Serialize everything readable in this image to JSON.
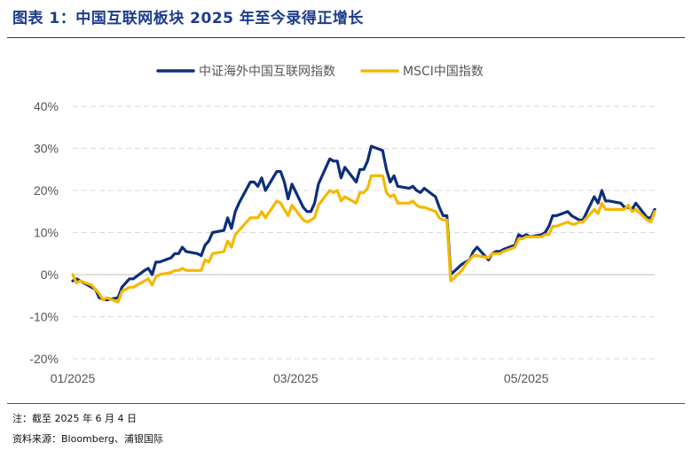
{
  "header": {
    "title": "图表 1：中国互联网板块 2025 年至今录得正增长"
  },
  "footer": {
    "note": "注：截至 2025 年 6 月 4 日",
    "source": "资料来源：Bloomberg、浦银国际"
  },
  "chart_data": {
    "type": "line",
    "y_tick_labels": [
      "40%",
      "30%",
      "20%",
      "10%",
      "0%",
      "-10%",
      "-20%"
    ],
    "y_ticks": [
      40,
      30,
      20,
      10,
      0,
      -10,
      -20
    ],
    "ylim": [
      -20,
      40
    ],
    "x_tick_labels": [
      "01/2025",
      "03/2025",
      "05/2025"
    ],
    "x_ticks": [
      "2025-01-01",
      "2025-03-01",
      "2025-05-01"
    ],
    "xlim": [
      "2025-01-01",
      "2025-06-04"
    ],
    "grid": true,
    "legend_position": "top",
    "series": [
      {
        "name": "中证海外中国互联网指数",
        "color": "#0d2e7a",
        "points": [
          [
            "2025-01-01",
            -1.5
          ],
          [
            "2025-01-02",
            -1.0
          ],
          [
            "2025-01-03",
            -1.5
          ],
          [
            "2025-01-06",
            -3.0
          ],
          [
            "2025-01-07",
            -3.5
          ],
          [
            "2025-01-08",
            -5.5
          ],
          [
            "2025-01-09",
            -5.8
          ],
          [
            "2025-01-10",
            -6.0
          ],
          [
            "2025-01-13",
            -5.5
          ],
          [
            "2025-01-14",
            -3.0
          ],
          [
            "2025-01-15",
            -2.0
          ],
          [
            "2025-01-16",
            -1.0
          ],
          [
            "2025-01-17",
            -1.0
          ],
          [
            "2025-01-20",
            1.0
          ],
          [
            "2025-01-21",
            1.5
          ],
          [
            "2025-01-22",
            0.0
          ],
          [
            "2025-01-23",
            3.0
          ],
          [
            "2025-01-24",
            3.0
          ],
          [
            "2025-01-27",
            4.0
          ],
          [
            "2025-01-28",
            5.0
          ],
          [
            "2025-01-29",
            5.0
          ],
          [
            "2025-01-30",
            6.5
          ],
          [
            "2025-01-31",
            5.5
          ],
          [
            "2025-02-03",
            5.0
          ],
          [
            "2025-02-04",
            4.5
          ],
          [
            "2025-02-05",
            7.0
          ],
          [
            "2025-02-06",
            8.0
          ],
          [
            "2025-02-07",
            10.0
          ],
          [
            "2025-02-10",
            10.5
          ],
          [
            "2025-02-11",
            13.5
          ],
          [
            "2025-02-12",
            11.0
          ],
          [
            "2025-02-13",
            15.0
          ],
          [
            "2025-02-14",
            17.0
          ],
          [
            "2025-02-17",
            22.0
          ],
          [
            "2025-02-18",
            22.0
          ],
          [
            "2025-02-19",
            21.0
          ],
          [
            "2025-02-20",
            23.0
          ],
          [
            "2025-02-21",
            20.0
          ],
          [
            "2025-02-24",
            24.5
          ],
          [
            "2025-02-25",
            24.5
          ],
          [
            "2025-02-26",
            22.0
          ],
          [
            "2025-02-27",
            18.0
          ],
          [
            "2025-02-28",
            21.5
          ],
          [
            "2025-03-03",
            16.0
          ],
          [
            "2025-03-04",
            15.0
          ],
          [
            "2025-03-05",
            15.0
          ],
          [
            "2025-03-06",
            17.0
          ],
          [
            "2025-03-07",
            21.5
          ],
          [
            "2025-03-10",
            27.5
          ],
          [
            "2025-03-11",
            27.0
          ],
          [
            "2025-03-12",
            27.0
          ],
          [
            "2025-03-13",
            23.0
          ],
          [
            "2025-03-14",
            25.5
          ],
          [
            "2025-03-17",
            22.0
          ],
          [
            "2025-03-18",
            25.0
          ],
          [
            "2025-03-19",
            25.0
          ],
          [
            "2025-03-20",
            27.0
          ],
          [
            "2025-03-21",
            30.5
          ],
          [
            "2025-03-24",
            29.5
          ],
          [
            "2025-03-25",
            25.0
          ],
          [
            "2025-03-26",
            22.0
          ],
          [
            "2025-03-27",
            23.5
          ],
          [
            "2025-03-28",
            21.0
          ],
          [
            "2025-03-31",
            20.5
          ],
          [
            "2025-04-01",
            21.0
          ],
          [
            "2025-04-02",
            20.0
          ],
          [
            "2025-04-03",
            19.5
          ],
          [
            "2025-04-04",
            20.5
          ],
          [
            "2025-04-07",
            18.5
          ],
          [
            "2025-04-08",
            16.0
          ],
          [
            "2025-04-09",
            14.0
          ],
          [
            "2025-04-10",
            14.0
          ],
          [
            "2025-04-11",
            0.0
          ],
          [
            "2025-04-14",
            2.5
          ],
          [
            "2025-04-15",
            3.0
          ],
          [
            "2025-04-16",
            3.5
          ],
          [
            "2025-04-17",
            5.5
          ],
          [
            "2025-04-18",
            6.5
          ],
          [
            "2025-04-21",
            3.5
          ],
          [
            "2025-04-22",
            5.0
          ],
          [
            "2025-04-23",
            5.5
          ],
          [
            "2025-04-24",
            5.5
          ],
          [
            "2025-04-25",
            6.0
          ],
          [
            "2025-04-28",
            7.0
          ],
          [
            "2025-04-29",
            9.5
          ],
          [
            "2025-04-30",
            9.0
          ],
          [
            "2025-05-01",
            9.5
          ],
          [
            "2025-05-02",
            9.0
          ],
          [
            "2025-05-05",
            9.5
          ],
          [
            "2025-05-06",
            10.0
          ],
          [
            "2025-05-07",
            11.5
          ],
          [
            "2025-05-08",
            14.0
          ],
          [
            "2025-05-09",
            14.0
          ],
          [
            "2025-05-12",
            15.0
          ],
          [
            "2025-05-13",
            14.0
          ],
          [
            "2025-05-14",
            13.5
          ],
          [
            "2025-05-15",
            13.0
          ],
          [
            "2025-05-16",
            13.0
          ],
          [
            "2025-05-19",
            18.5
          ],
          [
            "2025-05-20",
            17.0
          ],
          [
            "2025-05-21",
            20.0
          ],
          [
            "2025-05-22",
            17.5
          ],
          [
            "2025-05-23",
            17.5
          ],
          [
            "2025-05-26",
            17.0
          ],
          [
            "2025-05-27",
            16.0
          ],
          [
            "2025-05-28",
            16.0
          ],
          [
            "2025-05-29",
            15.5
          ],
          [
            "2025-05-30",
            17.0
          ],
          [
            "2025-06-02",
            13.5
          ],
          [
            "2025-06-03",
            13.5
          ],
          [
            "2025-06-04",
            15.5
          ]
        ]
      },
      {
        "name": "MSCI中国指数",
        "color": "#f5b800",
        "points": [
          [
            "2025-01-01",
            0.0
          ],
          [
            "2025-01-02",
            -2.0
          ],
          [
            "2025-01-03",
            -1.5
          ],
          [
            "2025-01-06",
            -2.5
          ],
          [
            "2025-01-07",
            -3.5
          ],
          [
            "2025-01-08",
            -4.5
          ],
          [
            "2025-01-09",
            -6.0
          ],
          [
            "2025-01-10",
            -5.5
          ],
          [
            "2025-01-13",
            -6.5
          ],
          [
            "2025-01-14",
            -4.0
          ],
          [
            "2025-01-15",
            -3.5
          ],
          [
            "2025-01-16",
            -3.0
          ],
          [
            "2025-01-17",
            -3.0
          ],
          [
            "2025-01-20",
            -1.5
          ],
          [
            "2025-01-21",
            -1.0
          ],
          [
            "2025-01-22",
            -2.5
          ],
          [
            "2025-01-23",
            -0.5
          ],
          [
            "2025-01-24",
            0.0
          ],
          [
            "2025-01-27",
            0.5
          ],
          [
            "2025-01-28",
            1.0
          ],
          [
            "2025-01-29",
            1.0
          ],
          [
            "2025-01-30",
            1.5
          ],
          [
            "2025-01-31",
            1.0
          ],
          [
            "2025-02-03",
            1.0
          ],
          [
            "2025-02-04",
            1.0
          ],
          [
            "2025-02-05",
            3.5
          ],
          [
            "2025-02-06",
            3.0
          ],
          [
            "2025-02-07",
            5.0
          ],
          [
            "2025-02-10",
            5.5
          ],
          [
            "2025-02-11",
            8.0
          ],
          [
            "2025-02-12",
            6.5
          ],
          [
            "2025-02-13",
            9.5
          ],
          [
            "2025-02-14",
            10.5
          ],
          [
            "2025-02-17",
            13.5
          ],
          [
            "2025-02-18",
            13.5
          ],
          [
            "2025-02-19",
            13.5
          ],
          [
            "2025-02-20",
            15.0
          ],
          [
            "2025-02-21",
            13.5
          ],
          [
            "2025-02-24",
            17.5
          ],
          [
            "2025-02-25",
            17.0
          ],
          [
            "2025-02-26",
            15.5
          ],
          [
            "2025-02-27",
            14.0
          ],
          [
            "2025-02-28",
            16.5
          ],
          [
            "2025-03-03",
            13.0
          ],
          [
            "2025-03-04",
            12.5
          ],
          [
            "2025-03-05",
            13.0
          ],
          [
            "2025-03-06",
            13.5
          ],
          [
            "2025-03-07",
            16.5
          ],
          [
            "2025-03-10",
            20.0
          ],
          [
            "2025-03-11",
            19.5
          ],
          [
            "2025-03-12",
            20.0
          ],
          [
            "2025-03-13",
            17.5
          ],
          [
            "2025-03-14",
            18.5
          ],
          [
            "2025-03-17",
            17.0
          ],
          [
            "2025-03-18",
            19.5
          ],
          [
            "2025-03-19",
            19.5
          ],
          [
            "2025-03-20",
            20.5
          ],
          [
            "2025-03-21",
            23.5
          ],
          [
            "2025-03-24",
            23.5
          ],
          [
            "2025-03-25",
            19.5
          ],
          [
            "2025-03-26",
            18.5
          ],
          [
            "2025-03-27",
            19.0
          ],
          [
            "2025-03-28",
            17.0
          ],
          [
            "2025-03-31",
            17.0
          ],
          [
            "2025-04-01",
            17.5
          ],
          [
            "2025-04-02",
            16.5
          ],
          [
            "2025-04-03",
            16.0
          ],
          [
            "2025-04-04",
            16.0
          ],
          [
            "2025-04-07",
            15.0
          ],
          [
            "2025-04-08",
            13.5
          ],
          [
            "2025-04-09",
            13.0
          ],
          [
            "2025-04-10",
            13.0
          ],
          [
            "2025-04-11",
            -1.5
          ],
          [
            "2025-04-14",
            1.0
          ],
          [
            "2025-04-15",
            2.5
          ],
          [
            "2025-04-16",
            3.5
          ],
          [
            "2025-04-17",
            4.5
          ],
          [
            "2025-04-18",
            4.5
          ],
          [
            "2025-04-21",
            4.0
          ],
          [
            "2025-04-22",
            5.0
          ],
          [
            "2025-04-23",
            5.0
          ],
          [
            "2025-04-24",
            5.0
          ],
          [
            "2025-04-25",
            5.5
          ],
          [
            "2025-04-28",
            6.5
          ],
          [
            "2025-04-29",
            8.5
          ],
          [
            "2025-04-30",
            8.5
          ],
          [
            "2025-05-01",
            9.0
          ],
          [
            "2025-05-02",
            9.0
          ],
          [
            "2025-05-05",
            9.0
          ],
          [
            "2025-05-06",
            9.5
          ],
          [
            "2025-05-07",
            9.5
          ],
          [
            "2025-05-08",
            11.5
          ],
          [
            "2025-05-09",
            11.5
          ],
          [
            "2025-05-12",
            12.5
          ],
          [
            "2025-05-13",
            12.0
          ],
          [
            "2025-05-14",
            12.0
          ],
          [
            "2025-05-15",
            12.5
          ],
          [
            "2025-05-16",
            12.5
          ],
          [
            "2025-05-19",
            15.5
          ],
          [
            "2025-05-20",
            14.5
          ],
          [
            "2025-05-21",
            17.0
          ],
          [
            "2025-05-22",
            15.5
          ],
          [
            "2025-05-23",
            15.5
          ],
          [
            "2025-05-26",
            15.5
          ],
          [
            "2025-05-27",
            15.5
          ],
          [
            "2025-05-28",
            16.5
          ],
          [
            "2025-05-29",
            15.0
          ],
          [
            "2025-05-30",
            15.5
          ],
          [
            "2025-06-02",
            13.0
          ],
          [
            "2025-06-03",
            12.5
          ],
          [
            "2025-06-04",
            15.0
          ]
        ]
      }
    ]
  }
}
